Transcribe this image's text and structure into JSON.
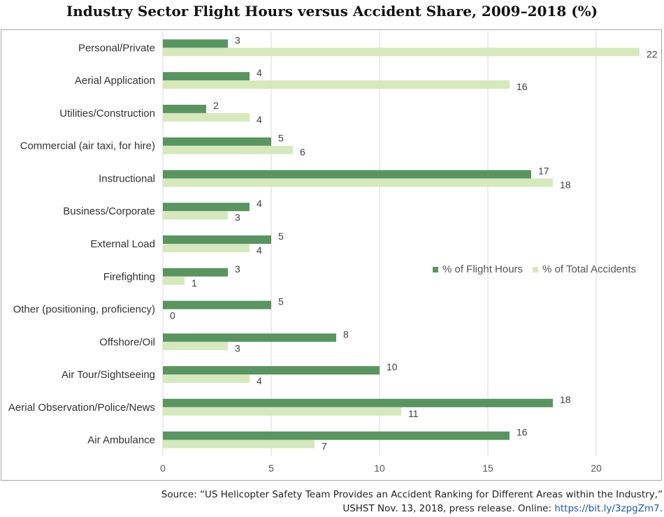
{
  "chart_data": {
    "type": "bar",
    "orientation": "horizontal",
    "title": "Industry Sector Flight Hours versus Accident Share, 2009–2018 (%)",
    "categories": [
      "Personal/Private",
      "Aerial Application",
      "Utilities/Construction",
      "Commercial (air taxi, for hire)",
      "Instructional",
      "Business/Corporate",
      "External Load",
      "Firefighting",
      "Other (positioning, proficiency)",
      "Offshore/Oil",
      "Air Tour/Sightseeing",
      "Aerial Observation/Police/News",
      "Air Ambulance"
    ],
    "series": [
      {
        "name": "% of Flight Hours",
        "color": "#5a9460",
        "values": [
          3,
          4,
          2,
          5,
          17,
          4,
          5,
          3,
          5,
          8,
          10,
          18,
          16
        ]
      },
      {
        "name": "% of Total Accidents",
        "color": "#d6e8bd",
        "values": [
          22,
          16,
          4,
          6,
          18,
          3,
          4,
          1,
          0,
          3,
          4,
          11,
          7
        ]
      }
    ],
    "xlim": [
      0,
      22
    ],
    "xticks": [
      0,
      5,
      10,
      15,
      20
    ],
    "xlabel": "",
    "ylabel": "",
    "grid": true,
    "legend_position": "right"
  },
  "source": {
    "line1": "Source: “US Helicopter Safety Team Provides an Accident Ranking for Different Areas within the Industry,”",
    "line2_prefix": "USHST Nov. 13, 2018, press release. Online: ",
    "link": "https://bit.ly/3zpgZm7."
  }
}
